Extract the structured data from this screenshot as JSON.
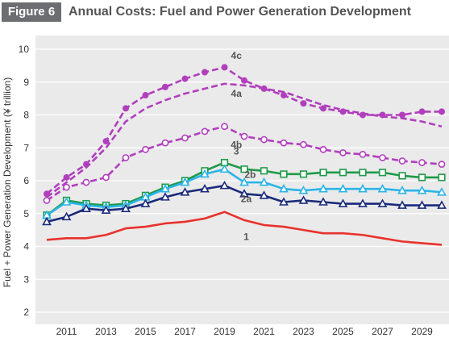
{
  "header": {
    "badge": "Figure 6",
    "title": "Annual Costs: Fuel and Power Generation Development"
  },
  "chart_data": {
    "type": "line",
    "title": "Annual Costs: Fuel and Power Generation Development",
    "xlabel": "",
    "ylabel": "Fuel + Power Generation Development (¥ trillion)",
    "ylim": [
      2,
      10
    ],
    "xlim": [
      2010,
      2030
    ],
    "yticks": [
      "2",
      "3",
      "4",
      "5",
      "6",
      "7",
      "8",
      "9",
      "10"
    ],
    "xticks": [
      "2011",
      "2013",
      "2015",
      "2017",
      "2019",
      "2021",
      "2023",
      "2025",
      "2027",
      "2029"
    ],
    "grid": true,
    "colors": {
      "plot_bg": "#eaeaea",
      "grid": "#ffffff",
      "purple": "#b13fbd",
      "red": "#e8322d",
      "green": "#1f9a4a",
      "cyan": "#2ab4e8",
      "navy": "#1b2a7a"
    },
    "series": [
      {
        "name": "4c",
        "color": "#b13fbd",
        "style": "dashed",
        "marker": "dot-filled",
        "x": [
          2010,
          2011,
          2012,
          2013,
          2014,
          2015,
          2016,
          2017,
          2018,
          2019,
          2020,
          2021,
          2022,
          2023,
          2024,
          2025,
          2026,
          2027,
          2028,
          2029,
          2030
        ],
        "values": [
          5.6,
          6.1,
          6.5,
          7.2,
          8.2,
          8.6,
          8.85,
          9.1,
          9.3,
          9.45,
          9.05,
          8.8,
          8.6,
          8.35,
          8.2,
          8.1,
          8.0,
          8.0,
          8.0,
          8.1,
          8.1
        ]
      },
      {
        "name": "4a",
        "color": "#b13fbd",
        "style": "dashed",
        "marker": "none",
        "x": [
          2010,
          2011,
          2012,
          2013,
          2014,
          2015,
          2016,
          2017,
          2018,
          2019,
          2020,
          2021,
          2022,
          2023,
          2024,
          2025,
          2026,
          2027,
          2028,
          2029,
          2030
        ],
        "values": [
          5.5,
          5.95,
          6.4,
          7.0,
          7.8,
          8.2,
          8.45,
          8.65,
          8.8,
          8.95,
          8.9,
          8.8,
          8.7,
          8.5,
          8.3,
          8.15,
          8.05,
          7.95,
          7.9,
          7.8,
          7.65
        ]
      },
      {
        "name": "4b",
        "color": "#b13fbd",
        "style": "dashed",
        "marker": "dot-open",
        "x": [
          2010,
          2011,
          2012,
          2013,
          2014,
          2015,
          2016,
          2017,
          2018,
          2019,
          2020,
          2021,
          2022,
          2023,
          2024,
          2025,
          2026,
          2027,
          2028,
          2029,
          2030
        ],
        "values": [
          5.4,
          5.8,
          5.95,
          6.1,
          6.7,
          6.95,
          7.15,
          7.3,
          7.5,
          7.65,
          7.35,
          7.25,
          7.15,
          7.1,
          6.95,
          6.85,
          6.8,
          6.7,
          6.6,
          6.55,
          6.5
        ]
      },
      {
        "name": "3",
        "color": "#1f9a4a",
        "style": "solid",
        "marker": "square-open",
        "x": [
          2010,
          2011,
          2012,
          2013,
          2014,
          2015,
          2016,
          2017,
          2018,
          2019,
          2020,
          2021,
          2022,
          2023,
          2024,
          2025,
          2026,
          2027,
          2028,
          2029,
          2030
        ],
        "values": [
          4.95,
          5.4,
          5.3,
          5.25,
          5.3,
          5.55,
          5.8,
          6.0,
          6.3,
          6.55,
          6.35,
          6.3,
          6.2,
          6.2,
          6.25,
          6.25,
          6.25,
          6.25,
          6.15,
          6.1,
          6.1
        ]
      },
      {
        "name": "2b",
        "color": "#2ab4e8",
        "style": "solid",
        "marker": "triangle-open",
        "x": [
          2010,
          2011,
          2012,
          2013,
          2014,
          2015,
          2016,
          2017,
          2018,
          2019,
          2020,
          2021,
          2022,
          2023,
          2024,
          2025,
          2026,
          2027,
          2028,
          2029,
          2030
        ],
        "values": [
          4.95,
          5.35,
          5.25,
          5.2,
          5.25,
          5.5,
          5.75,
          5.95,
          6.2,
          6.35,
          5.95,
          5.95,
          5.75,
          5.7,
          5.75,
          5.75,
          5.75,
          5.75,
          5.7,
          5.7,
          5.65
        ]
      },
      {
        "name": "2a",
        "color": "#1b2a7a",
        "style": "solid",
        "marker": "triangle-open",
        "x": [
          2010,
          2011,
          2012,
          2013,
          2014,
          2015,
          2016,
          2017,
          2018,
          2019,
          2020,
          2021,
          2022,
          2023,
          2024,
          2025,
          2026,
          2027,
          2028,
          2029,
          2030
        ],
        "values": [
          4.75,
          4.9,
          5.15,
          5.1,
          5.15,
          5.3,
          5.5,
          5.65,
          5.75,
          5.85,
          5.6,
          5.55,
          5.35,
          5.4,
          5.35,
          5.3,
          5.3,
          5.3,
          5.25,
          5.25,
          5.25
        ]
      },
      {
        "name": "1",
        "color": "#e8322d",
        "style": "solid",
        "marker": "none",
        "x": [
          2010,
          2011,
          2012,
          2013,
          2014,
          2015,
          2016,
          2017,
          2018,
          2019,
          2020,
          2021,
          2022,
          2023,
          2024,
          2025,
          2026,
          2027,
          2028,
          2029,
          2030
        ],
        "values": [
          4.2,
          4.25,
          4.25,
          4.35,
          4.55,
          4.6,
          4.7,
          4.75,
          4.85,
          5.05,
          4.8,
          4.65,
          4.6,
          4.5,
          4.4,
          4.4,
          4.35,
          4.25,
          4.15,
          4.1,
          4.05
        ]
      }
    ],
    "annotations": [
      {
        "text": "4c",
        "x": 2019.6,
        "y": 9.7,
        "color": "#555555"
      },
      {
        "text": "4a",
        "x": 2019.6,
        "y": 8.55,
        "color": "#555555"
      },
      {
        "text": "4b",
        "x": 2019.6,
        "y": 7.0,
        "color": "#555555"
      },
      {
        "text": "3",
        "x": 2019.6,
        "y": 6.8,
        "color": "#555555"
      },
      {
        "text": "2b",
        "x": 2020.3,
        "y": 6.08,
        "color": "#555555"
      },
      {
        "text": "2a",
        "x": 2020.1,
        "y": 5.35,
        "color": "#555555"
      },
      {
        "text": "1",
        "x": 2020.1,
        "y": 4.2,
        "color": "#555555"
      }
    ]
  }
}
